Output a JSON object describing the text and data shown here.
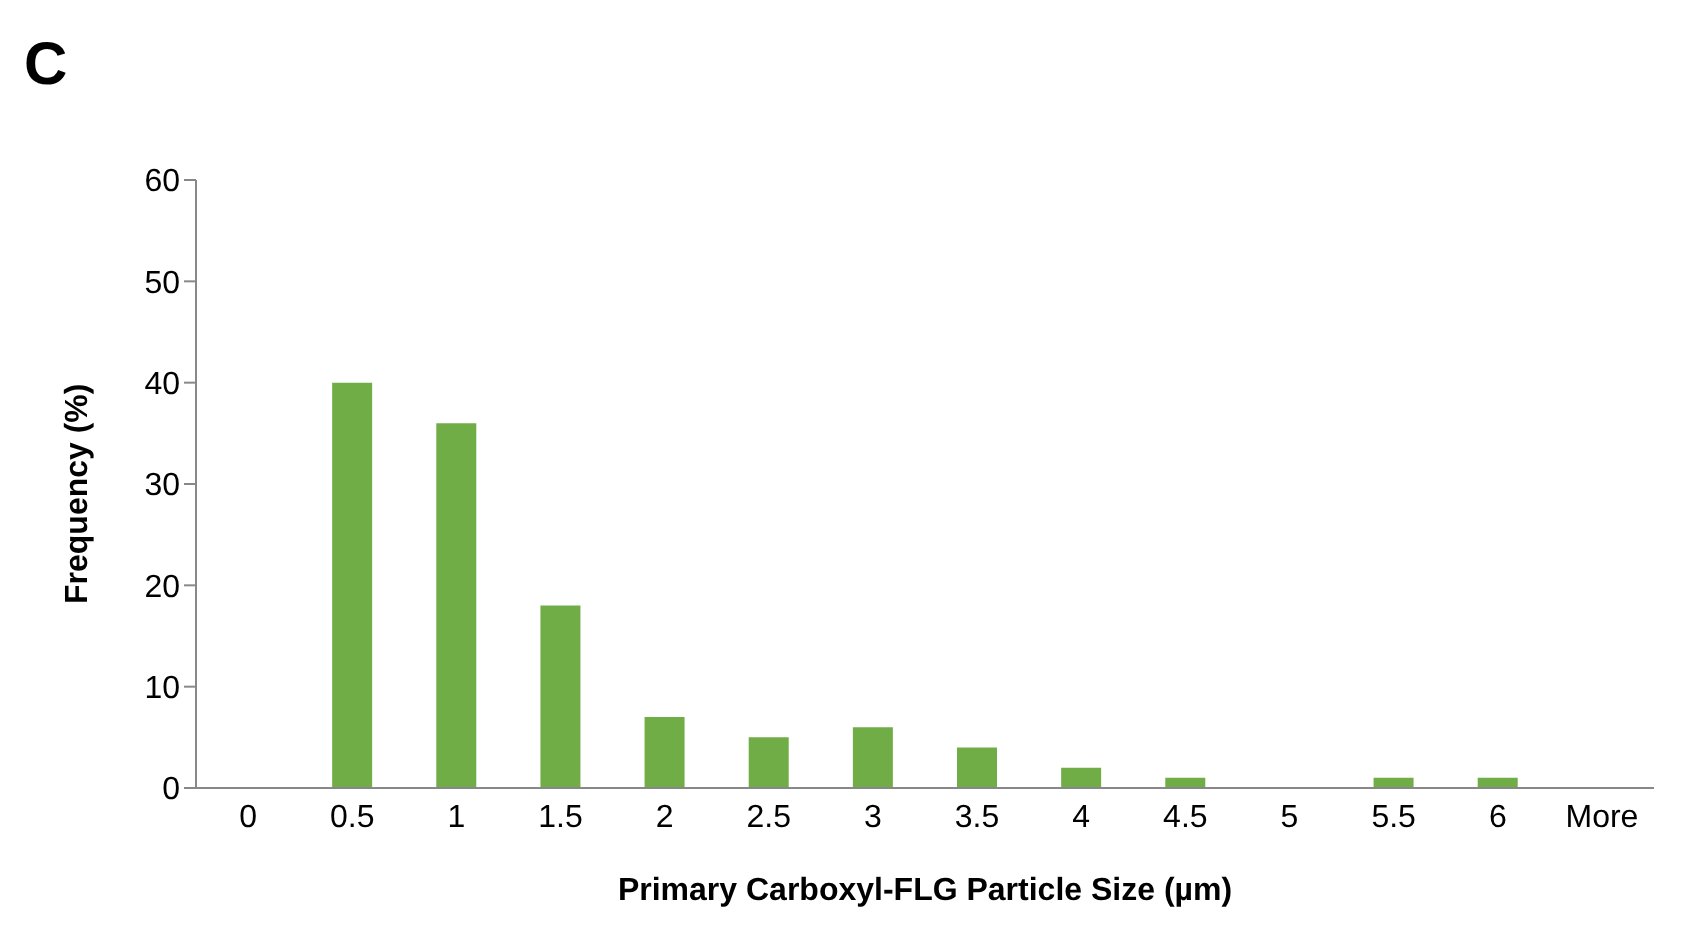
{
  "chart_data": {
    "type": "bar",
    "title": "C",
    "xlabel": "Primary Carboxyl-FLG Particle Size (µm)",
    "ylabel": "Frequency (%)",
    "categories": [
      "0",
      "0.5",
      "1",
      "1.5",
      "2",
      "2.5",
      "3",
      "3.5",
      "4",
      "4.5",
      "5",
      "5.5",
      "6",
      "More"
    ],
    "values": [
      0,
      40,
      36,
      18,
      7,
      5,
      6,
      4,
      2,
      1,
      0,
      1,
      1,
      0
    ],
    "color": "#70ad47",
    "ylim": [
      0,
      60
    ],
    "yticks": [
      0,
      10,
      20,
      30,
      40,
      50,
      60
    ],
    "grid": false,
    "legend": false
  }
}
